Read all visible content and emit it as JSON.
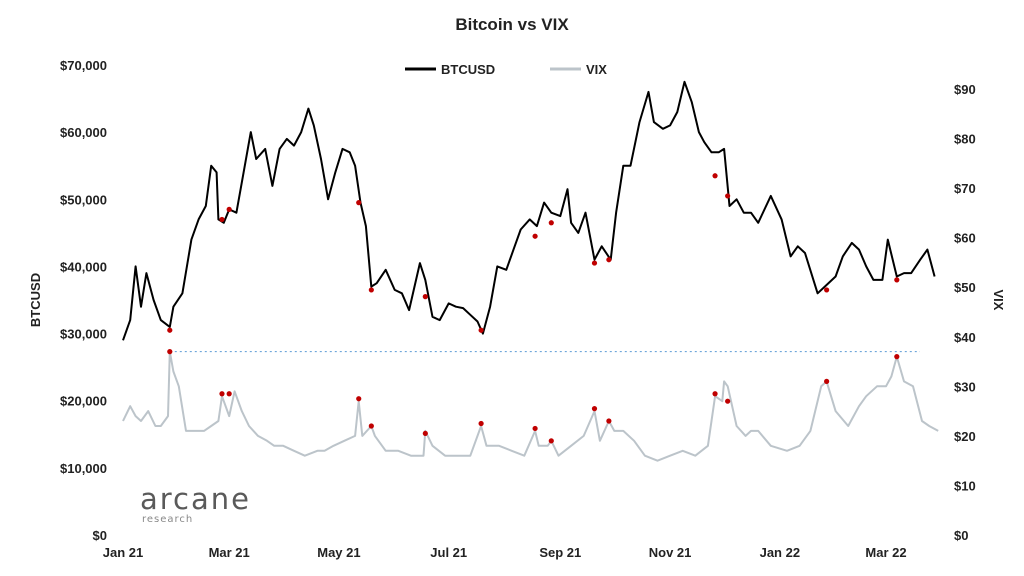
{
  "chart_data": {
    "type": "line",
    "title": "Bitcoin vs VIX",
    "ylabel_left": "BTCUSD",
    "ylabel_right": "VIX",
    "x_start": "2021-01-01",
    "x_end": "2022-03-31",
    "x_ticks": [
      "Jan 21",
      "Mar 21",
      "May 21",
      "Jul 21",
      "Sep 21",
      "Nov 21",
      "Jan 22",
      "Mar 22"
    ],
    "x_tick_dates": [
      "2021-01-01",
      "2021-03-01",
      "2021-05-01",
      "2021-07-01",
      "2021-09-01",
      "2021-11-01",
      "2022-01-01",
      "2022-03-01"
    ],
    "y_left": {
      "min": 0,
      "max": 70000,
      "ticks": [
        0,
        10000,
        20000,
        30000,
        40000,
        50000,
        60000,
        70000
      ],
      "tick_labels": [
        "$0",
        "$10,000",
        "$20,000",
        "$30,000",
        "$40,000",
        "$50,000",
        "$60,000",
        "$70,000"
      ]
    },
    "y_right": {
      "min": 0,
      "max": 90,
      "ticks": [
        0,
        10,
        20,
        30,
        40,
        50,
        60,
        70,
        80,
        90
      ],
      "tick_labels": [
        "$0",
        "$10",
        "$20",
        "$30",
        "$40",
        "$50",
        "$60",
        "$70",
        "$80",
        "$90"
      ]
    },
    "legend": {
      "placement": "top-center"
    },
    "reference_line": {
      "axis": "right",
      "value": 37,
      "style": "dashed",
      "color": "#5b9bd5"
    },
    "series": [
      {
        "name": "BTCUSD",
        "axis": "left",
        "color": "#000000",
        "points": [
          [
            "2021-01-01",
            29000
          ],
          [
            "2021-01-05",
            32000
          ],
          [
            "2021-01-08",
            40000
          ],
          [
            "2021-01-11",
            34000
          ],
          [
            "2021-01-14",
            39000
          ],
          [
            "2021-01-18",
            35000
          ],
          [
            "2021-01-22",
            32000
          ],
          [
            "2021-01-27",
            31000
          ],
          [
            "2021-01-29",
            34000
          ],
          [
            "2021-02-03",
            36000
          ],
          [
            "2021-02-08",
            44000
          ],
          [
            "2021-02-12",
            47000
          ],
          [
            "2021-02-16",
            49000
          ],
          [
            "2021-02-19",
            55000
          ],
          [
            "2021-02-22",
            54000
          ],
          [
            "2021-02-23",
            47000
          ],
          [
            "2021-02-26",
            46500
          ],
          [
            "2021-03-01",
            48500
          ],
          [
            "2021-03-05",
            48000
          ],
          [
            "2021-03-09",
            54000
          ],
          [
            "2021-03-13",
            60000
          ],
          [
            "2021-03-16",
            56000
          ],
          [
            "2021-03-21",
            57500
          ],
          [
            "2021-03-25",
            52000
          ],
          [
            "2021-03-29",
            57500
          ],
          [
            "2021-04-02",
            59000
          ],
          [
            "2021-04-06",
            58000
          ],
          [
            "2021-04-10",
            60000
          ],
          [
            "2021-04-14",
            63500
          ],
          [
            "2021-04-17",
            61000
          ],
          [
            "2021-04-21",
            56000
          ],
          [
            "2021-04-25",
            50000
          ],
          [
            "2021-04-29",
            54000
          ],
          [
            "2021-05-03",
            57500
          ],
          [
            "2021-05-07",
            57000
          ],
          [
            "2021-05-10",
            55000
          ],
          [
            "2021-05-13",
            49500
          ],
          [
            "2021-05-16",
            46000
          ],
          [
            "2021-05-19",
            37000
          ],
          [
            "2021-05-22",
            37500
          ],
          [
            "2021-05-27",
            39500
          ],
          [
            "2021-06-01",
            36500
          ],
          [
            "2021-06-05",
            36000
          ],
          [
            "2021-06-09",
            33500
          ],
          [
            "2021-06-15",
            40500
          ],
          [
            "2021-06-18",
            38000
          ],
          [
            "2021-06-22",
            32500
          ],
          [
            "2021-06-26",
            32000
          ],
          [
            "2021-07-01",
            34500
          ],
          [
            "2021-07-05",
            34000
          ],
          [
            "2021-07-09",
            33800
          ],
          [
            "2021-07-13",
            32800
          ],
          [
            "2021-07-17",
            31800
          ],
          [
            "2021-07-20",
            30000
          ],
          [
            "2021-07-24",
            34000
          ],
          [
            "2021-07-28",
            40000
          ],
          [
            "2021-08-02",
            39500
          ],
          [
            "2021-08-06",
            42500
          ],
          [
            "2021-08-10",
            45500
          ],
          [
            "2021-08-15",
            47000
          ],
          [
            "2021-08-19",
            46000
          ],
          [
            "2021-08-23",
            49500
          ],
          [
            "2021-08-27",
            48000
          ],
          [
            "2021-09-01",
            47500
          ],
          [
            "2021-09-05",
            51500
          ],
          [
            "2021-09-07",
            46500
          ],
          [
            "2021-09-11",
            45000
          ],
          [
            "2021-09-15",
            48000
          ],
          [
            "2021-09-20",
            41000
          ],
          [
            "2021-09-24",
            43000
          ],
          [
            "2021-09-29",
            41000
          ],
          [
            "2021-10-02",
            48000
          ],
          [
            "2021-10-06",
            55000
          ],
          [
            "2021-10-10",
            55000
          ],
          [
            "2021-10-15",
            61500
          ],
          [
            "2021-10-20",
            66000
          ],
          [
            "2021-10-23",
            61500
          ],
          [
            "2021-10-28",
            60500
          ],
          [
            "2021-11-01",
            61000
          ],
          [
            "2021-11-05",
            63000
          ],
          [
            "2021-11-09",
            67500
          ],
          [
            "2021-11-13",
            64500
          ],
          [
            "2021-11-17",
            60000
          ],
          [
            "2021-11-20",
            58500
          ],
          [
            "2021-11-24",
            57000
          ],
          [
            "2021-11-28",
            57000
          ],
          [
            "2021-12-01",
            57500
          ],
          [
            "2021-12-04",
            49000
          ],
          [
            "2021-12-08",
            50000
          ],
          [
            "2021-12-12",
            48000
          ],
          [
            "2021-12-16",
            48000
          ],
          [
            "2021-12-20",
            46500
          ],
          [
            "2021-12-27",
            50500
          ],
          [
            "2022-01-02",
            47000
          ],
          [
            "2022-01-07",
            41500
          ],
          [
            "2022-01-11",
            43000
          ],
          [
            "2022-01-15",
            42000
          ],
          [
            "2022-01-22",
            36000
          ],
          [
            "2022-01-26",
            37000
          ],
          [
            "2022-02-01",
            38500
          ],
          [
            "2022-02-05",
            41500
          ],
          [
            "2022-02-10",
            43500
          ],
          [
            "2022-02-14",
            42500
          ],
          [
            "2022-02-18",
            40000
          ],
          [
            "2022-02-22",
            38000
          ],
          [
            "2022-02-27",
            38000
          ],
          [
            "2022-03-02",
            44000
          ],
          [
            "2022-03-07",
            38500
          ],
          [
            "2022-03-11",
            39000
          ],
          [
            "2022-03-15",
            39000
          ],
          [
            "2022-03-20",
            41000
          ],
          [
            "2022-03-24",
            42500
          ],
          [
            "2022-03-28",
            38500
          ]
        ]
      },
      {
        "name": "VIX",
        "axis": "right",
        "color": "#bcc4ca",
        "points": [
          [
            "2021-01-01",
            23
          ],
          [
            "2021-01-05",
            26
          ],
          [
            "2021-01-08",
            24
          ],
          [
            "2021-01-11",
            23
          ],
          [
            "2021-01-15",
            25
          ],
          [
            "2021-01-19",
            22
          ],
          [
            "2021-01-22",
            22
          ],
          [
            "2021-01-26",
            24
          ],
          [
            "2021-01-27",
            37
          ],
          [
            "2021-01-29",
            33
          ],
          [
            "2021-02-01",
            30
          ],
          [
            "2021-02-05",
            21
          ],
          [
            "2021-02-10",
            21
          ],
          [
            "2021-02-15",
            21
          ],
          [
            "2021-02-19",
            22
          ],
          [
            "2021-02-23",
            23
          ],
          [
            "2021-02-25",
            28
          ],
          [
            "2021-02-26",
            27
          ],
          [
            "2021-03-01",
            24
          ],
          [
            "2021-03-04",
            29
          ],
          [
            "2021-03-08",
            25
          ],
          [
            "2021-03-12",
            22
          ],
          [
            "2021-03-17",
            20
          ],
          [
            "2021-03-22",
            19
          ],
          [
            "2021-03-26",
            18
          ],
          [
            "2021-03-31",
            18
          ],
          [
            "2021-04-06",
            17
          ],
          [
            "2021-04-12",
            16
          ],
          [
            "2021-04-19",
            17
          ],
          [
            "2021-04-23",
            17
          ],
          [
            "2021-04-28",
            18
          ],
          [
            "2021-05-04",
            19
          ],
          [
            "2021-05-10",
            20
          ],
          [
            "2021-05-12",
            27
          ],
          [
            "2021-05-14",
            20
          ],
          [
            "2021-05-19",
            22
          ],
          [
            "2021-05-21",
            20
          ],
          [
            "2021-05-27",
            17
          ],
          [
            "2021-06-03",
            17
          ],
          [
            "2021-06-10",
            16
          ],
          [
            "2021-06-17",
            16
          ],
          [
            "2021-06-18",
            21
          ],
          [
            "2021-06-22",
            18
          ],
          [
            "2021-06-29",
            16
          ],
          [
            "2021-07-06",
            16
          ],
          [
            "2021-07-13",
            16
          ],
          [
            "2021-07-19",
            22
          ],
          [
            "2021-07-22",
            18
          ],
          [
            "2021-07-29",
            18
          ],
          [
            "2021-08-05",
            17
          ],
          [
            "2021-08-12",
            16
          ],
          [
            "2021-08-18",
            21
          ],
          [
            "2021-08-20",
            18
          ],
          [
            "2021-08-25",
            18
          ],
          [
            "2021-08-27",
            19
          ],
          [
            "2021-08-31",
            16
          ],
          [
            "2021-09-07",
            18
          ],
          [
            "2021-09-14",
            20
          ],
          [
            "2021-09-20",
            25
          ],
          [
            "2021-09-23",
            19
          ],
          [
            "2021-09-28",
            23
          ],
          [
            "2021-10-01",
            21
          ],
          [
            "2021-10-06",
            21
          ],
          [
            "2021-10-12",
            19
          ],
          [
            "2021-10-18",
            16
          ],
          [
            "2021-10-25",
            15
          ],
          [
            "2021-11-01",
            16
          ],
          [
            "2021-11-08",
            17
          ],
          [
            "2021-11-15",
            16
          ],
          [
            "2021-11-22",
            18
          ],
          [
            "2021-11-26",
            28
          ],
          [
            "2021-11-30",
            27
          ],
          [
            "2021-12-01",
            31
          ],
          [
            "2021-12-03",
            30
          ],
          [
            "2021-12-08",
            22
          ],
          [
            "2021-12-13",
            20
          ],
          [
            "2021-12-16",
            21
          ],
          [
            "2021-12-20",
            21
          ],
          [
            "2021-12-27",
            18
          ],
          [
            "2022-01-05",
            17
          ],
          [
            "2022-01-12",
            18
          ],
          [
            "2022-01-18",
            21
          ],
          [
            "2022-01-24",
            30
          ],
          [
            "2022-01-27",
            31
          ],
          [
            "2022-02-01",
            25
          ],
          [
            "2022-02-08",
            22
          ],
          [
            "2022-02-14",
            26
          ],
          [
            "2022-02-18",
            28
          ],
          [
            "2022-02-24",
            30
          ],
          [
            "2022-03-01",
            30
          ],
          [
            "2022-03-04",
            32
          ],
          [
            "2022-03-07",
            36
          ],
          [
            "2022-03-11",
            31
          ],
          [
            "2022-03-16",
            30
          ],
          [
            "2022-03-21",
            23
          ],
          [
            "2022-03-25",
            22
          ],
          [
            "2022-03-30",
            21
          ]
        ]
      }
    ],
    "highlight_points": {
      "btc_red": [
        [
          "2021-01-27",
          30500
        ],
        [
          "2021-02-25",
          47000
        ],
        [
          "2021-03-01",
          48500
        ],
        [
          "2021-05-12",
          49500
        ],
        [
          "2021-05-19",
          36500
        ],
        [
          "2021-06-18",
          35500
        ],
        [
          "2021-07-19",
          30500
        ],
        [
          "2021-08-18",
          44500
        ],
        [
          "2021-08-27",
          46500
        ],
        [
          "2021-09-20",
          40500
        ],
        [
          "2021-09-28",
          41000
        ],
        [
          "2021-11-26",
          53500
        ],
        [
          "2021-12-03",
          50500
        ],
        [
          "2022-01-27",
          36500
        ],
        [
          "2022-03-07",
          38000
        ]
      ],
      "vix_red": [
        [
          "2021-01-27",
          37
        ],
        [
          "2021-02-25",
          28.5
        ],
        [
          "2021-03-01",
          28.5
        ],
        [
          "2021-05-12",
          27.5
        ],
        [
          "2021-05-19",
          22
        ],
        [
          "2021-06-18",
          20.5
        ],
        [
          "2021-07-19",
          22.5
        ],
        [
          "2021-08-18",
          21.5
        ],
        [
          "2021-08-27",
          19
        ],
        [
          "2021-09-20",
          25.5
        ],
        [
          "2021-09-28",
          23
        ],
        [
          "2021-11-26",
          28.5
        ],
        [
          "2021-12-03",
          27
        ],
        [
          "2022-01-27",
          31
        ],
        [
          "2022-03-07",
          36
        ]
      ]
    },
    "grid": false
  },
  "branding": {
    "name": "arcane",
    "sub": "research"
  }
}
